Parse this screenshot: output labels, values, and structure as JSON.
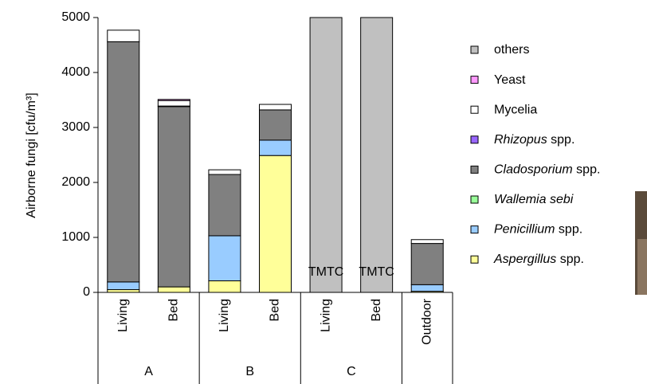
{
  "chart_data": {
    "type": "stacked-bar",
    "y_label": "Airborne fungi [cfu/m³]",
    "categories": [
      "Living",
      "Bed",
      "Living",
      "Bed",
      "Living",
      "Bed",
      "Outdoor"
    ],
    "groups": [
      {
        "label": "A",
        "size": 2
      },
      {
        "label": "B",
        "size": 2
      },
      {
        "label": "C",
        "size": 2
      }
    ],
    "series": [
      {
        "name": "Aspergillus spp.",
        "italic": true,
        "color": "#ffff99",
        "values": [
          50,
          100,
          210,
          2490,
          null,
          null,
          20
        ]
      },
      {
        "name": "Penicillium spp.",
        "italic": true,
        "color": "#99ccff",
        "values": [
          140,
          0,
          820,
          280,
          null,
          null,
          120
        ]
      },
      {
        "name": "Wallemia sebi",
        "italic": true,
        "color": "#99ff99",
        "values": [
          0,
          0,
          0,
          0,
          null,
          null,
          0
        ]
      },
      {
        "name": "Cladosporium spp.",
        "italic": true,
        "color": "#808080",
        "values": [
          4370,
          3280,
          1115,
          550,
          null,
          null,
          750
        ]
      },
      {
        "name": "Rhizopus spp.",
        "italic": true,
        "color": "#9966ff",
        "values": [
          0,
          10,
          0,
          0,
          null,
          null,
          0
        ]
      },
      {
        "name": "Mycelia",
        "italic": false,
        "color": "#ffffff",
        "values": [
          210,
          100,
          85,
          100,
          null,
          null,
          70
        ]
      },
      {
        "name": "Yeast",
        "italic": false,
        "color": "#ff99ff",
        "values": [
          0,
          20,
          0,
          0,
          null,
          null,
          0
        ]
      },
      {
        "name": "others",
        "italic": false,
        "color": "#c0c0c0",
        "values": [
          null,
          null,
          null,
          null,
          5000,
          5000,
          null
        ]
      }
    ],
    "annotations": [
      {
        "text": "TMTC",
        "category": 4
      },
      {
        "text": "TMTC",
        "category": 5
      }
    ],
    "ylim": [
      0,
      5000
    ],
    "yticks": [
      0,
      1000,
      2000,
      3000,
      4000,
      5000
    ],
    "grid": false
  }
}
